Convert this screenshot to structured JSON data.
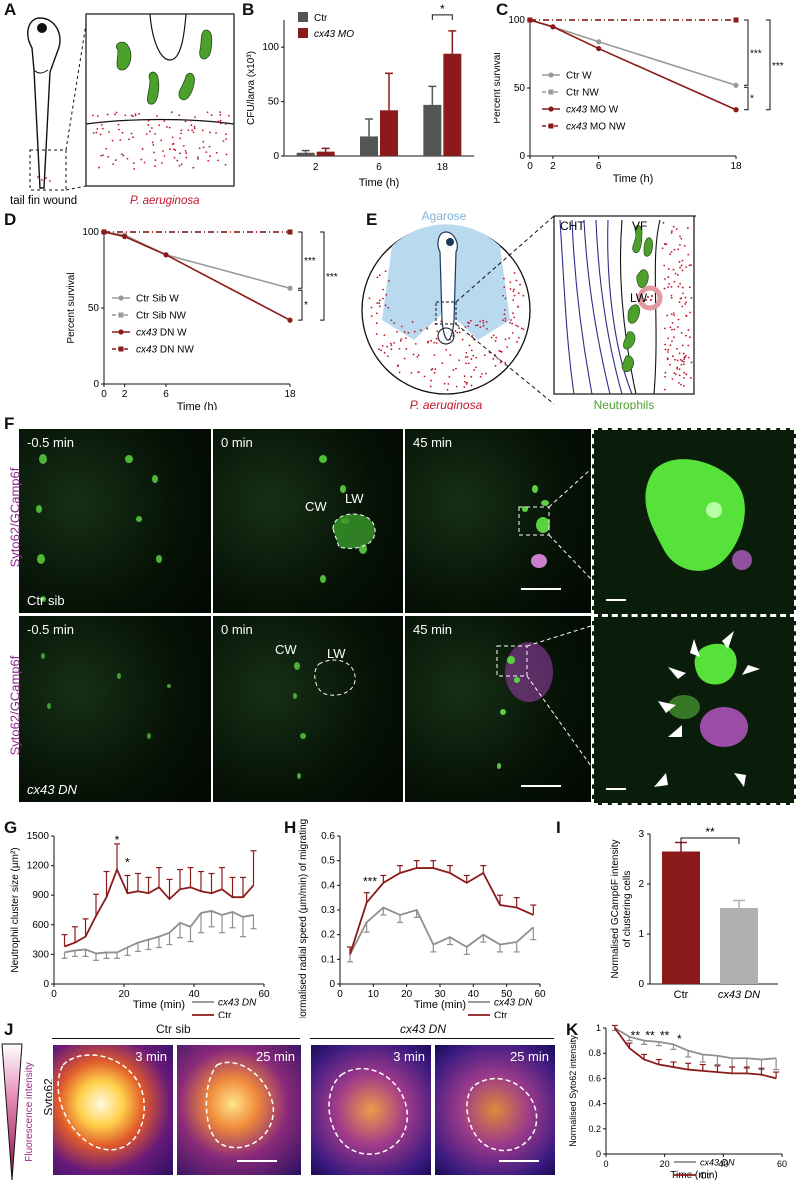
{
  "panels": {
    "A": {
      "letter": "A",
      "fish_label": "tail fin wound",
      "bacteria_label": "P. aeruginosa"
    },
    "B": {
      "letter": "B"
    },
    "C": {
      "letter": "C"
    },
    "D": {
      "letter": "D"
    },
    "E": {
      "letter": "E",
      "agarose": "Agarose",
      "bacteria": "P. aeruginosa",
      "neutrophils": "Neutrophils",
      "cht": "CHT",
      "vf": "VF",
      "lw": "LW"
    },
    "F": {
      "letter": "F",
      "rows": [
        {
          "stain": "Syto62/GCamp6f",
          "genotype": "Ctr sib",
          "times": [
            "-0.5 min",
            "0 min",
            "45 min"
          ],
          "cw": "CW",
          "lw": "LW"
        },
        {
          "stain": "Syto62/GCamp6f",
          "genotype": "cx43 DN",
          "times": [
            "-0.5 min",
            "0 min",
            "45 min"
          ],
          "cw": "CW",
          "lw": "LW"
        }
      ]
    },
    "G": {
      "letter": "G"
    },
    "H": {
      "letter": "H"
    },
    "I": {
      "letter": "I"
    },
    "J": {
      "letter": "J",
      "scale_label": "Fluorescence intensity",
      "stain": "Syto62",
      "groups": [
        "Ctr sib",
        "cx43 DN"
      ],
      "times": [
        "3 min",
        "25 min",
        "3 min",
        "25 min"
      ]
    },
    "K": {
      "letter": "K"
    }
  },
  "chart_data": [
    {
      "id": "B",
      "type": "bar",
      "categories": [
        "2",
        "6",
        "18"
      ],
      "series": [
        {
          "name": "Ctr",
          "color": "#555555",
          "values": [
            3,
            18,
            47
          ],
          "err": [
            2,
            16,
            17
          ]
        },
        {
          "name": "cx43 MO",
          "color": "#8b1a1a",
          "values": [
            4,
            42,
            94
          ],
          "err": [
            3,
            34,
            21
          ]
        }
      ],
      "xlabel": "Time (h)",
      "ylabel": "CFU/larva (x10³)",
      "ylim": [
        0,
        125
      ],
      "yticks": [
        0,
        50,
        100
      ],
      "significance": "*"
    },
    {
      "id": "C",
      "type": "line",
      "x": [
        0,
        2,
        6,
        18
      ],
      "series": [
        {
          "name": "Ctr W",
          "color": "#9a9a9a",
          "values": [
            100,
            95,
            84,
            52
          ]
        },
        {
          "name": "Ctr NW",
          "color": "#9a9a9a",
          "values": [
            100,
            100,
            100,
            100
          ],
          "dash": true
        },
        {
          "name": "cx43 MO W",
          "color": "#8b1a1a",
          "values": [
            100,
            95,
            79,
            34
          ]
        },
        {
          "name": "cx43 MO NW",
          "color": "#8b1a1a",
          "values": [
            100,
            100,
            100,
            100
          ],
          "dash": true
        }
      ],
      "xlabel": "Time (h)",
      "ylabel": "Percent survival",
      "ylim": [
        0,
        100
      ],
      "xticks": [
        0,
        2,
        6,
        18
      ],
      "yticks": [
        0,
        50,
        100
      ],
      "significance": [
        "***",
        "*",
        "***"
      ]
    },
    {
      "id": "D",
      "type": "line",
      "x": [
        0,
        2,
        6,
        18
      ],
      "series": [
        {
          "name": "Ctr Sib W",
          "color": "#9a9a9a",
          "values": [
            100,
            98,
            85,
            63
          ]
        },
        {
          "name": "Ctr Sib NW",
          "color": "#9a9a9a",
          "values": [
            100,
            100,
            100,
            100
          ],
          "dash": true
        },
        {
          "name": "cx43 DN W",
          "color": "#8b1a1a",
          "values": [
            100,
            97,
            85,
            42
          ]
        },
        {
          "name": "cx43 DN NW",
          "color": "#8b1a1a",
          "values": [
            100,
            100,
            100,
            100
          ],
          "dash": true
        }
      ],
      "xlabel": "Time (h)",
      "ylabel": "Percent survival",
      "ylim": [
        0,
        100
      ],
      "xticks": [
        0,
        2,
        6,
        18
      ],
      "yticks": [
        0,
        50,
        100
      ],
      "significance": [
        "***",
        "*",
        "***"
      ]
    },
    {
      "id": "G",
      "type": "line",
      "x": [
        3,
        6,
        9,
        12,
        15,
        18,
        21,
        24,
        27,
        30,
        33,
        36,
        39,
        42,
        45,
        48,
        51,
        54,
        57
      ],
      "series": [
        {
          "name": "cx43 DN",
          "color": "#8f8f8f",
          "values": [
            320,
            340,
            350,
            310,
            320,
            320,
            370,
            420,
            450,
            480,
            520,
            620,
            580,
            720,
            740,
            700,
            730,
            680,
            700
          ],
          "err": [
            60,
            60,
            70,
            70,
            60,
            60,
            80,
            90,
            100,
            110,
            120,
            150,
            150,
            200,
            160,
            180,
            160,
            200,
            140
          ]
        },
        {
          "name": "Ctr",
          "color": "#8b1a1a",
          "values": [
            380,
            420,
            480,
            690,
            880,
            1160,
            920,
            940,
            920,
            980,
            860,
            960,
            980,
            940,
            920,
            960,
            880,
            880,
            1000
          ],
          "err": [
            120,
            160,
            180,
            220,
            260,
            260,
            180,
            180,
            160,
            200,
            200,
            200,
            200,
            200,
            200,
            220,
            200,
            200,
            350
          ]
        }
      ],
      "xlabel": "Time (min)",
      "ylabel": "Neutrophil cluster size (µm²)",
      "ylim": [
        0,
        1500
      ],
      "yticks": [
        0,
        300,
        600,
        900,
        1200,
        1500
      ],
      "xticks": [
        0,
        20,
        40,
        60
      ],
      "annotations": [
        "*",
        "*"
      ]
    },
    {
      "id": "H",
      "type": "line",
      "x": [
        3,
        8,
        13,
        18,
        23,
        28,
        33,
        38,
        43,
        48,
        53,
        58
      ],
      "series": [
        {
          "name": "cx43 DN",
          "color": "#8f8f8f",
          "values": [
            0.12,
            0.25,
            0.31,
            0.28,
            0.3,
            0.16,
            0.19,
            0.15,
            0.2,
            0.16,
            0.17,
            0.23
          ],
          "err": [
            0.03,
            0.04,
            0.03,
            0.03,
            0.03,
            0.03,
            0.03,
            0.03,
            0.03,
            0.03,
            0.04,
            0.05
          ]
        },
        {
          "name": "Ctr",
          "color": "#8b1a1a",
          "values": [
            0.12,
            0.33,
            0.41,
            0.45,
            0.47,
            0.47,
            0.45,
            0.41,
            0.45,
            0.32,
            0.31,
            0.28
          ],
          "err": [
            0.03,
            0.04,
            0.03,
            0.03,
            0.03,
            0.03,
            0.03,
            0.03,
            0.03,
            0.04,
            0.04,
            0.04
          ]
        }
      ],
      "xlabel": "Time (min)",
      "ylabel": "Normalised radial speed (µm/min) of migrating cells",
      "ylim": [
        0,
        0.6
      ],
      "yticks": [
        0,
        0.1,
        0.2,
        0.3,
        0.4,
        0.5,
        0.6
      ],
      "xticks": [
        0,
        10,
        20,
        30,
        40,
        50,
        60
      ],
      "annotations": [
        "***"
      ]
    },
    {
      "id": "I",
      "type": "bar",
      "categories": [
        "Ctr",
        "cx43 DN"
      ],
      "values": [
        2.65,
        1.52
      ],
      "err": [
        0.18,
        0.15
      ],
      "colors": [
        "#8b1a1a",
        "#b0b0b0"
      ],
      "ylabel": "Normalised GCamp6F intensity of clustering cells",
      "ylim": [
        0,
        3
      ],
      "significance": "**"
    },
    {
      "id": "K",
      "type": "line",
      "x": [
        3,
        8,
        13,
        18,
        23,
        28,
        33,
        38,
        43,
        48,
        53,
        58
      ],
      "series": [
        {
          "name": "cx43 DN",
          "color": "#8f8f8f",
          "values": [
            1.0,
            0.93,
            0.9,
            0.89,
            0.87,
            0.82,
            0.79,
            0.78,
            0.76,
            0.76,
            0.75,
            0.76
          ],
          "err": [
            0.02,
            0.03,
            0.03,
            0.03,
            0.04,
            0.05,
            0.06,
            0.07,
            0.07,
            0.08,
            0.08,
            0.09
          ]
        },
        {
          "name": "Ctr",
          "color": "#8b1a1a",
          "values": [
            1.0,
            0.84,
            0.75,
            0.71,
            0.69,
            0.67,
            0.66,
            0.65,
            0.64,
            0.64,
            0.63,
            0.6
          ],
          "err": [
            0.02,
            0.04,
            0.04,
            0.04,
            0.04,
            0.05,
            0.05,
            0.05,
            0.05,
            0.05,
            0.05,
            0.05
          ]
        }
      ],
      "xlabel": "Time (min)",
      "ylabel": "Normalised Syto62 intensity",
      "ylim": [
        0,
        1
      ],
      "yticks": [
        0,
        0.2,
        0.4,
        0.6,
        0.8,
        1
      ],
      "xticks": [
        0,
        20,
        40,
        60
      ],
      "annotations": [
        "**",
        "**",
        "**",
        "*"
      ]
    }
  ]
}
